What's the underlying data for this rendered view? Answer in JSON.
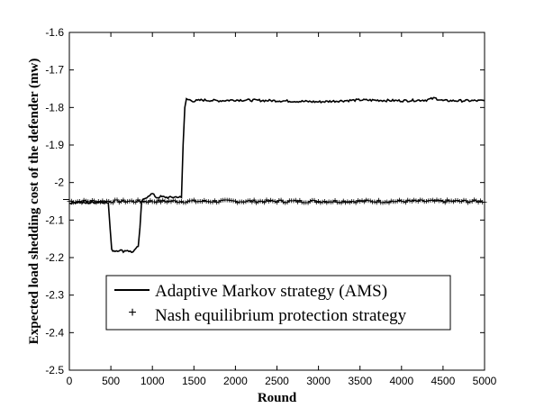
{
  "chart_data": {
    "type": "line",
    "xlabel": "Round",
    "ylabel": "Expected load shedding cost of the defender (mw)",
    "xlim": [
      0,
      5000
    ],
    "ylim": [
      -2.5,
      -1.6
    ],
    "xticks": [
      0,
      500,
      1000,
      1500,
      2000,
      2500,
      3000,
      3500,
      4000,
      4500,
      5000
    ],
    "yticks": [
      -1.6,
      -1.7,
      -1.8,
      -1.9,
      -2.0,
      -2.1,
      -2.2,
      -2.3,
      -2.4,
      -2.5
    ],
    "xtick_labels": [
      "0",
      "500",
      "1000",
      "1500",
      "2000",
      "2500",
      "3000",
      "3500",
      "4000",
      "4500",
      "5000"
    ],
    "ytick_labels": [
      "-1.6",
      "-1.7",
      "-1.8",
      "-1.9",
      "-2",
      "-2.1",
      "-2.2",
      "-2.3",
      "-2.4",
      "-2.5"
    ],
    "legend_position": "lower-center",
    "grid": false,
    "series": [
      {
        "name": "Adaptive Markov strategy (AMS)",
        "style": "line",
        "color": "#000000",
        "x": [
          0,
          100,
          200,
          300,
          400,
          470,
          490,
          510,
          550,
          600,
          650,
          700,
          750,
          800,
          830,
          850,
          870,
          900,
          950,
          1000,
          1050,
          1100,
          1200,
          1300,
          1350,
          1370,
          1390,
          1410,
          1450,
          1500,
          1600,
          1800,
          2000,
          2500,
          3000,
          3500,
          4000,
          4300,
          4400,
          4500,
          5000
        ],
        "y": [
          -2.055,
          -2.052,
          -2.055,
          -2.053,
          -2.052,
          -2.055,
          -2.12,
          -2.18,
          -2.182,
          -2.18,
          -2.183,
          -2.18,
          -2.186,
          -2.178,
          -2.17,
          -2.12,
          -2.05,
          -2.045,
          -2.035,
          -2.03,
          -2.04,
          -2.038,
          -2.04,
          -2.038,
          -2.04,
          -1.9,
          -1.8,
          -1.778,
          -1.78,
          -1.783,
          -1.78,
          -1.782,
          -1.78,
          -1.782,
          -1.785,
          -1.78,
          -1.782,
          -1.78,
          -1.775,
          -1.782,
          -1.782
        ]
      },
      {
        "name": "Nash equilibrium protection strategy",
        "style": "plus-markers",
        "color": "#000000",
        "x_start": 0,
        "x_end": 5000,
        "x_step": 25,
        "y_mean": -2.05,
        "y_jitter": 0.004
      }
    ],
    "annotations": [
      {
        "text": "-2.05",
        "note": "short horizontal tick mark on left axis near y=-2.05"
      }
    ]
  }
}
